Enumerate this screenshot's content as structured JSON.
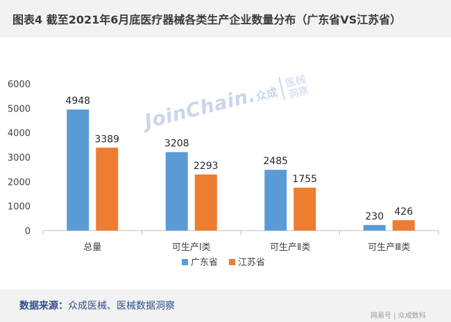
{
  "header": {
    "title": "图表4  截至2021年6月底医疗器械各类生产企业数量分布（广东省VS江苏省）"
  },
  "watermark": {
    "text": "JoinChain.",
    "logo": "众成",
    "side_top": "医械",
    "side_bottom": "洞察"
  },
  "footer": {
    "source_label": "数据来源：",
    "source_text": "众成医械、医械数据洞察",
    "platform": "网易号 | 众成数科"
  },
  "chart_data": {
    "type": "bar",
    "categories": [
      "总量",
      "可生产Ⅰ类",
      "可生产Ⅱ类",
      "可生产Ⅲ类"
    ],
    "series": [
      {
        "name": "广东省",
        "color": "#5b9bd5",
        "values": [
          4948,
          3208,
          2485,
          230
        ]
      },
      {
        "name": "江苏省",
        "color": "#ed7d31",
        "values": [
          3389,
          2293,
          1755,
          426
        ]
      }
    ],
    "ylim": [
      0,
      6000
    ],
    "yticks": [
      "0",
      "1000",
      "2000",
      "3000",
      "4000",
      "5000",
      "6000"
    ],
    "grid": false,
    "legend_position": "bottom"
  }
}
